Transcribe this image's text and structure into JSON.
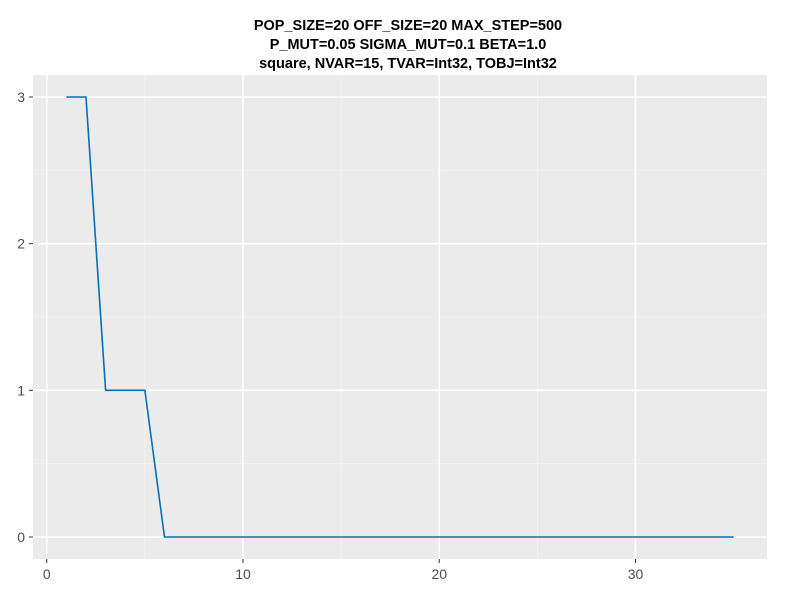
{
  "chart_data": {
    "type": "line",
    "title_lines": [
      "POP_SIZE=20 OFF_SIZE=20 MAX_STEP=500",
      "P_MUT=0.05 SIGMA_MUT=0.1 BETA=1.0",
      "square, NVAR=15, TVAR=Int32, TOBJ=Int32"
    ],
    "xlabel": "",
    "ylabel": "",
    "xlim": [
      -0.7,
      36.7
    ],
    "ylim": [
      -0.15,
      3.15
    ],
    "x_ticks": [
      0,
      10,
      20,
      30
    ],
    "x_tick_labels": [
      "0",
      "10",
      "20",
      "30"
    ],
    "y_ticks": [
      0,
      1,
      2,
      3
    ],
    "y_tick_labels": [
      "0",
      "1",
      "2",
      "3"
    ],
    "grid": true,
    "background": "#ebebeb",
    "series": [
      {
        "color": "#0072b2",
        "x": [
          1,
          2,
          3,
          4,
          5,
          6,
          7,
          8,
          9,
          10,
          11,
          12,
          13,
          14,
          15,
          16,
          17,
          18,
          19,
          20,
          21,
          22,
          23,
          24,
          25,
          26,
          27,
          28,
          29,
          30,
          31,
          32,
          33,
          34,
          35
        ],
        "y": [
          3,
          3,
          1,
          1,
          1,
          0,
          0,
          0,
          0,
          0,
          0,
          0,
          0,
          0,
          0,
          0,
          0,
          0,
          0,
          0,
          0,
          0,
          0,
          0,
          0,
          0,
          0,
          0,
          0,
          0,
          0,
          0,
          0,
          0,
          0
        ]
      }
    ]
  }
}
